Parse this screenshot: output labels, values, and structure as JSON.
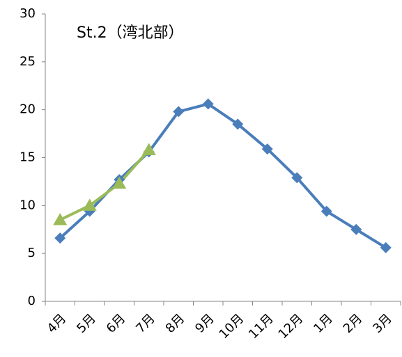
{
  "chart_data": {
    "type": "line",
    "title": "St.2（湾北部）",
    "categories": [
      "4月",
      "5月",
      "6月",
      "7月",
      "8月",
      "9月",
      "10月",
      "11月",
      "12月",
      "1月",
      "2月",
      "3月"
    ],
    "series": [
      {
        "color": "#4a7ebb",
        "marker": "diamond",
        "values": [
          6.6,
          9.4,
          12.7,
          15.6,
          19.8,
          20.6,
          18.5,
          15.9,
          12.9,
          9.4,
          7.5,
          5.6
        ]
      },
      {
        "color": "#9bbb59",
        "marker": "triangle",
        "values": [
          8.5,
          10.0,
          12.3,
          15.8,
          null,
          null,
          null,
          null,
          null,
          null,
          null,
          null
        ]
      }
    ],
    "ylim": [
      0,
      30
    ],
    "yticks": [
      0,
      5,
      10,
      15,
      20,
      25,
      30
    ],
    "grid": false
  }
}
